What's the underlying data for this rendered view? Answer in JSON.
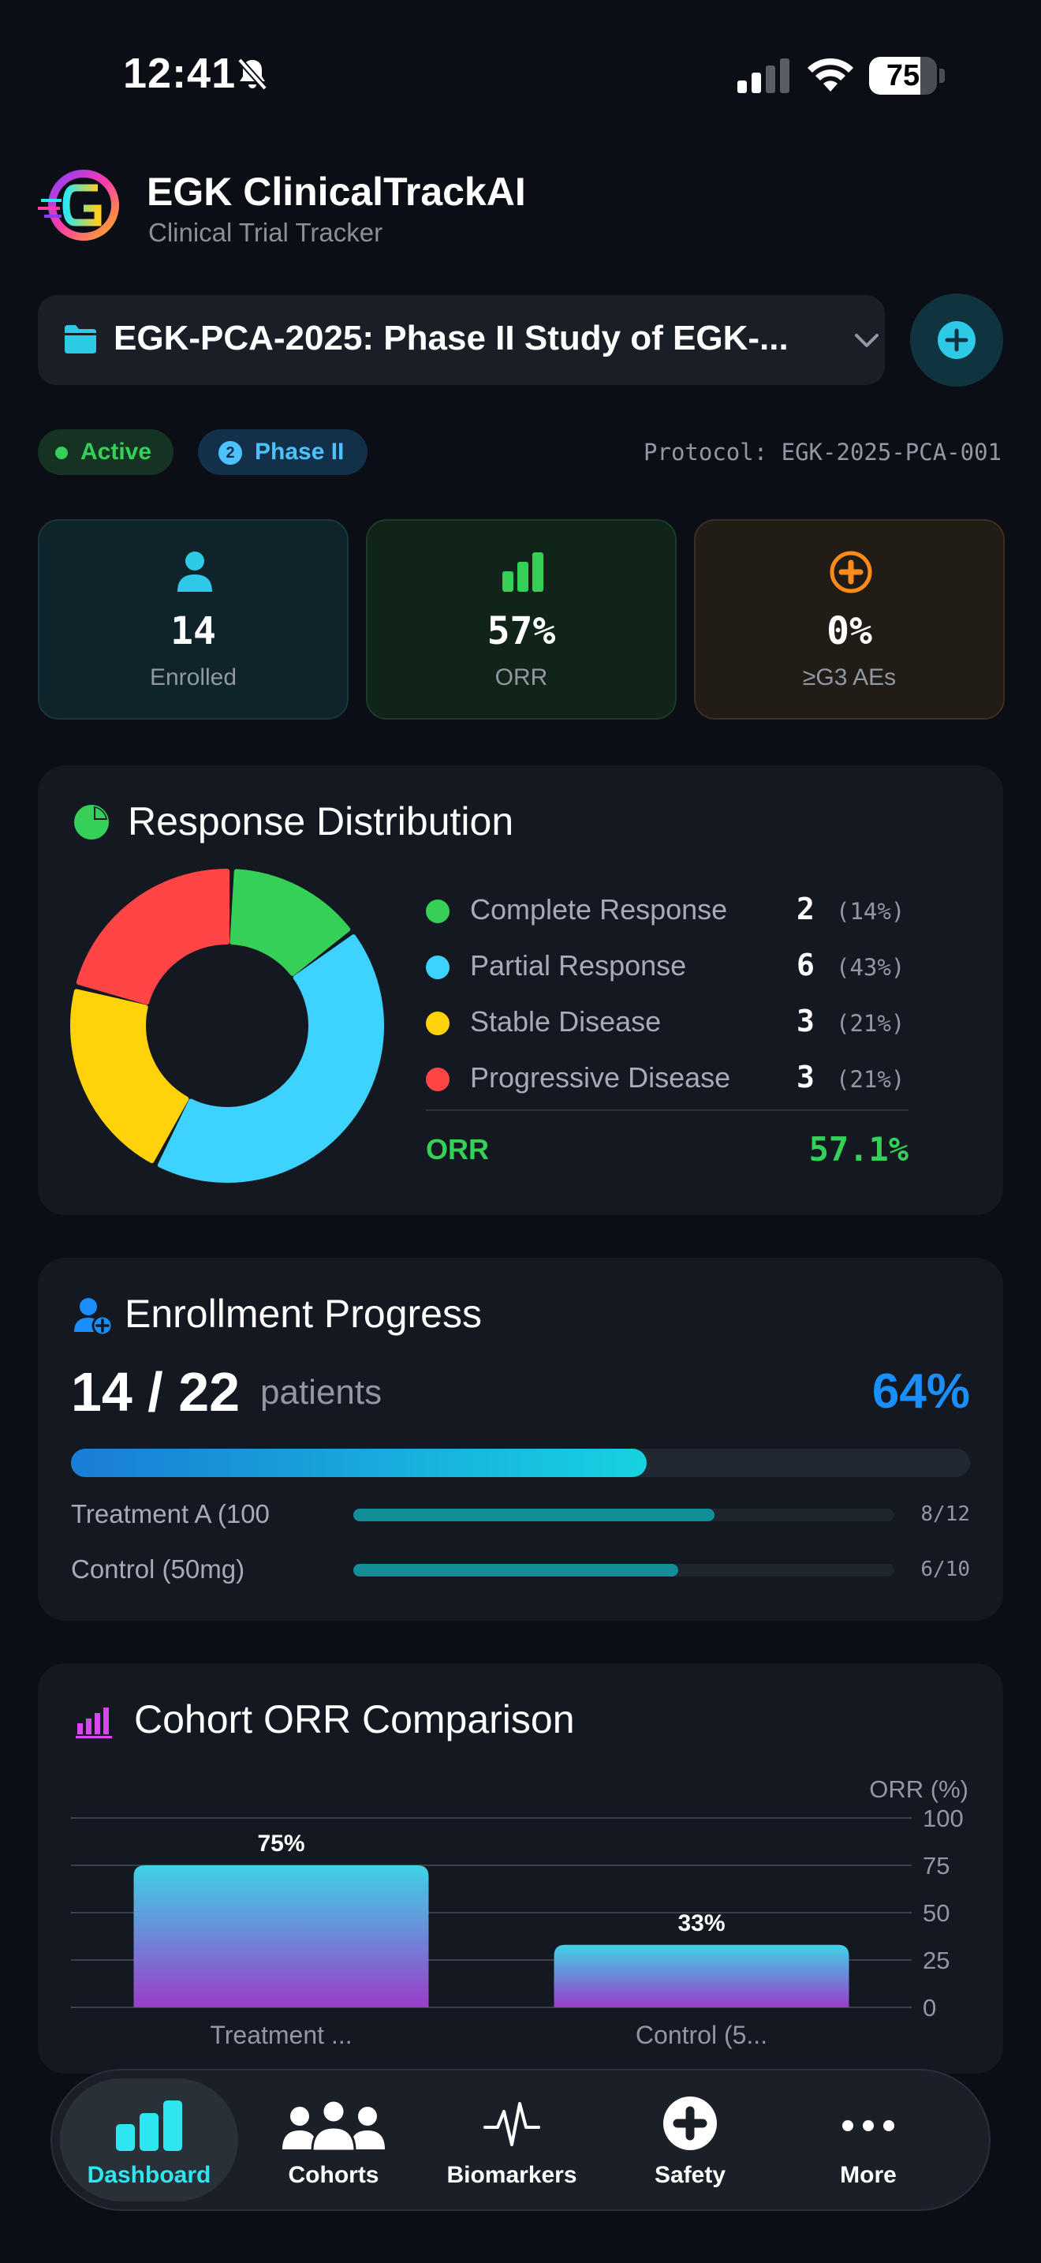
{
  "status_bar": {
    "time": "12:41",
    "battery": "75",
    "battery_level": 0.75
  },
  "app": {
    "title": "EGK ClinicalTrackAI",
    "subtitle": "Clinical Trial Tracker"
  },
  "trial_selector": {
    "value": "EGK-PCA-2025: Phase II Study of EGK-..."
  },
  "badges": {
    "status": "Active",
    "phase_number": "2",
    "phase": "Phase II"
  },
  "protocol": "Protocol: EGK-2025-PCA-001",
  "stats": [
    {
      "value": "14",
      "label": "Enrolled",
      "color": "#2ec9e6",
      "icon": "person-icon"
    },
    {
      "value": "57%",
      "label": "ORR",
      "color": "#34d058",
      "icon": "bar-chart-icon"
    },
    {
      "value": "0%",
      "label": "≥G3 AEs",
      "color": "#ff8c1a",
      "icon": "medical-cross-icon"
    }
  ],
  "response": {
    "title": "Response Distribution",
    "items": [
      {
        "name": "Complete Response",
        "count": "2",
        "pct": "(14%)",
        "value": 2,
        "color": "#34d058"
      },
      {
        "name": "Partial Response",
        "count": "6",
        "pct": "(43%)",
        "value": 6,
        "color": "#3ed2ff"
      },
      {
        "name": "Stable Disease",
        "count": "3",
        "pct": "(21%)",
        "value": 3,
        "color": "#ffd20a"
      },
      {
        "name": "Progressive Disease",
        "count": "3",
        "pct": "(21%)",
        "value": 3,
        "color": "#ff4545"
      }
    ],
    "orr_label": "ORR",
    "orr_value": "57.1%"
  },
  "enrollment": {
    "title": "Enrollment Progress",
    "count": "14 / 22",
    "unit": "patients",
    "pct": "64%",
    "progress": 0.64,
    "cohorts": [
      {
        "name": "Treatment A (100",
        "count": "8/12",
        "progress": 0.667
      },
      {
        "name": "Control (50mg)",
        "count": "6/10",
        "progress": 0.6
      }
    ]
  },
  "chart_data": {
    "type": "bar",
    "title": "Cohort ORR Comparison",
    "ylabel": "ORR (%)",
    "categories": [
      "Treatment ...",
      "Control (5..."
    ],
    "values": [
      75,
      33
    ],
    "data_labels": [
      "75%",
      "33%"
    ],
    "ylim": [
      0,
      100
    ],
    "yticks": [
      "0",
      "25",
      "50",
      "75",
      "100"
    ],
    "y_axis_side": "right",
    "grid": true
  },
  "tabs": [
    {
      "label": "Dashboard",
      "icon": "bar-chart-icon",
      "active": true
    },
    {
      "label": "Cohorts",
      "icon": "people-icon",
      "active": false
    },
    {
      "label": "Biomarkers",
      "icon": "pulse-icon",
      "active": false
    },
    {
      "label": "Safety",
      "icon": "medical-cross-icon",
      "active": false
    },
    {
      "label": "More",
      "icon": "more-icon",
      "active": false
    }
  ]
}
